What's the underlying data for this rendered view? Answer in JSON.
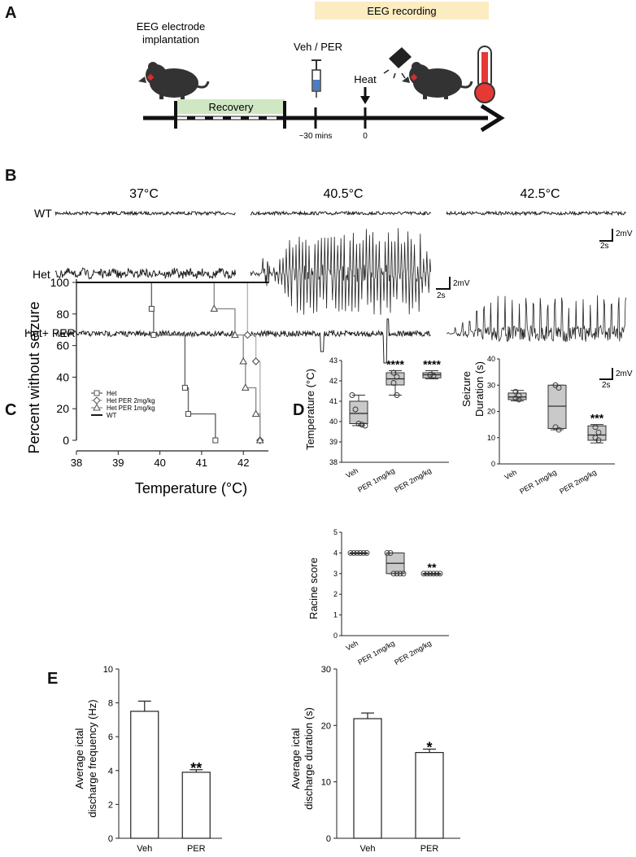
{
  "panels": {
    "a": "A",
    "b": "B",
    "c": "C",
    "d": "D",
    "e": "E"
  },
  "timeline": {
    "implant_line1": "EEG electrode",
    "implant_line2": "implantation",
    "recording": "EEG recording",
    "recovery": "Recovery",
    "drug": "Veh / PER",
    "heat": "Heat",
    "t1": "~30 mins",
    "t0": "0",
    "colors": {
      "recovery": "#cfe8c3",
      "recording": "#fbecc2",
      "thermo": "#e53935"
    }
  },
  "eeg": {
    "temps": [
      "37°C",
      "40.5°C",
      "42.5°C"
    ],
    "rows": [
      "WT",
      "Het",
      "Het+ PER"
    ],
    "scale_v": "2mV",
    "scale_t": "2s"
  },
  "chart_data": [
    {
      "type": "line",
      "panel": "C",
      "xlabel": "Temperature (°C)",
      "ylabel": "Percent without seizure",
      "xlim": [
        38,
        42.6
      ],
      "ylim": [
        0,
        100
      ],
      "xticks": [
        38,
        39,
        40,
        41,
        42
      ],
      "yticks": [
        0,
        20,
        40,
        60,
        80,
        100
      ],
      "legend_position": "lower-left",
      "series": [
        {
          "name": "Het",
          "marker": "square",
          "color": "#666666",
          "x": [
            37.2,
            39.8,
            39.85,
            40.6,
            40.68,
            41.33
          ],
          "y": [
            100,
            83.3,
            66.7,
            33.3,
            16.7,
            0
          ]
        },
        {
          "name": "Het PER 2mg/kg",
          "marker": "diamond",
          "color": "#b5b5b5",
          "x": [
            37.2,
            42.1,
            42.3,
            42.4
          ],
          "y": [
            100,
            66.7,
            50,
            0
          ]
        },
        {
          "name": "Het PER 1mg/kg",
          "marker": "triangle",
          "color": "#8c8c8c",
          "x": [
            37.2,
            41.3,
            41.8,
            42.0,
            42.05,
            42.3,
            42.4
          ],
          "y": [
            100,
            83.3,
            66.7,
            50,
            33.3,
            16.7,
            0
          ]
        },
        {
          "name": "WT",
          "marker": "none",
          "color": "#000000",
          "x": [
            37.2,
            42.6
          ],
          "y": [
            100,
            100
          ]
        }
      ]
    },
    {
      "type": "box",
      "panel": "D",
      "ylabel": "Temperature (°C)",
      "ylim": [
        38,
        43
      ],
      "yticks": [
        38,
        39,
        40,
        41,
        42,
        43
      ],
      "categories": [
        "Veh",
        "PER 1mg/kg",
        "PER 2mg/kg"
      ],
      "boxes": [
        {
          "q1": 39.9,
          "median": 40.4,
          "q3": 41.0,
          "min": 39.8,
          "max": 41.3,
          "points": [
            41.3,
            40.6,
            39.9,
            39.85,
            39.8
          ]
        },
        {
          "q1": 41.8,
          "median": 42.1,
          "q3": 42.4,
          "min": 41.3,
          "max": 42.5,
          "points": [
            42.4,
            42.2,
            41.9,
            41.3
          ]
        },
        {
          "q1": 42.15,
          "median": 42.3,
          "q3": 42.4,
          "min": 42.1,
          "max": 42.5,
          "points": [
            42.3,
            42.25
          ]
        }
      ],
      "annotations": [
        "",
        "****",
        "****"
      ]
    },
    {
      "type": "box",
      "panel": "D",
      "ylabel_line1": "Seizure",
      "ylabel_line2": "Duration (s)",
      "ylim": [
        0,
        40
      ],
      "yticks": [
        0,
        10,
        20,
        30,
        40
      ],
      "categories": [
        "Veh",
        "PER 1mg/kg",
        "PER 2mg/kg"
      ],
      "boxes": [
        {
          "q1": 24.5,
          "median": 25.5,
          "q3": 27,
          "min": 24,
          "max": 28,
          "points": [
            27.5,
            26,
            25,
            24.5
          ]
        },
        {
          "q1": 13.5,
          "median": 22,
          "q3": 30,
          "min": 13,
          "max": 30,
          "points": [
            30,
            29,
            14,
            13
          ]
        },
        {
          "q1": 9,
          "median": 11,
          "q3": 14.5,
          "min": 8,
          "max": 15,
          "points": [
            14,
            12,
            10,
            9
          ]
        }
      ],
      "annotations": [
        "",
        "",
        "***"
      ]
    },
    {
      "type": "box",
      "panel": "D",
      "ylabel": "Racine score",
      "ylim": [
        0,
        5
      ],
      "yticks": [
        0,
        1,
        2,
        3,
        4,
        5
      ],
      "categories": [
        "Veh",
        "PER 1mg/kg",
        "PER 2mg/kg"
      ],
      "boxes": [
        {
          "q1": 4,
          "median": 4,
          "q3": 4,
          "min": 4,
          "max": 4,
          "points": [
            4,
            4,
            4,
            4,
            4,
            4
          ]
        },
        {
          "q1": 3,
          "median": 3.5,
          "q3": 4,
          "min": 3,
          "max": 4,
          "points": [
            4,
            4,
            3,
            3,
            3,
            3
          ]
        },
        {
          "q1": 3,
          "median": 3,
          "q3": 3,
          "min": 3,
          "max": 3,
          "points": [
            3,
            3,
            3,
            3,
            3,
            3
          ]
        }
      ],
      "annotations": [
        "",
        "",
        "**"
      ]
    },
    {
      "type": "bar",
      "panel": "E",
      "ylabel_line1": "Average ictal",
      "ylabel_line2": "discharge frequency (Hz)",
      "ylim": [
        0,
        10
      ],
      "yticks": [
        0,
        2,
        4,
        6,
        8,
        10
      ],
      "categories": [
        "Veh",
        "PER"
      ],
      "values": [
        7.5,
        3.9
      ],
      "errors": [
        0.6,
        0.15
      ],
      "annotations": [
        "",
        "**"
      ]
    },
    {
      "type": "bar",
      "panel": "E",
      "ylabel_line1": "Average ictal",
      "ylabel_line2": "discharge duration (s)",
      "ylim": [
        0,
        30
      ],
      "yticks": [
        0,
        10,
        20,
        30
      ],
      "categories": [
        "Veh",
        "PER"
      ],
      "values": [
        21.2,
        15.2
      ],
      "errors": [
        1.0,
        0.6
      ],
      "annotations": [
        "",
        "*"
      ]
    }
  ]
}
